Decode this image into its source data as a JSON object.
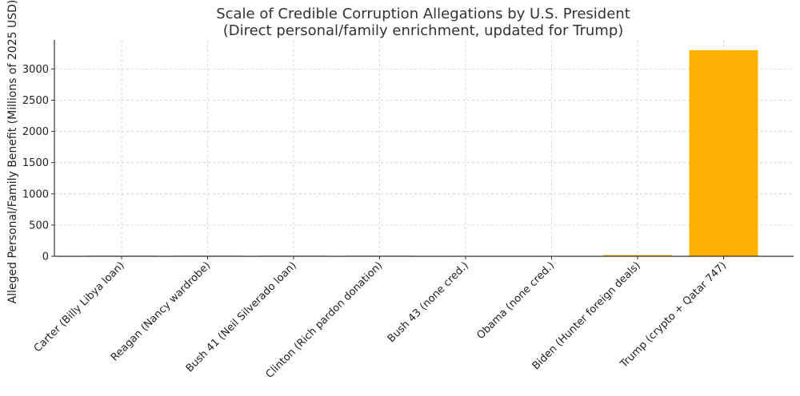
{
  "chart_data": {
    "type": "bar",
    "title_line1": "Scale of Credible Corruption Allegations by U.S. President",
    "title_line2": "(Direct personal/family enrichment, updated for Trump)",
    "xlabel": "",
    "ylabel": "Alleged Personal/Family Benefit (Millions of 2025 USD)",
    "categories": [
      "Carter (Billy Libya loan)",
      "Reagan (Nancy wardrobe)",
      "Bush 41 (Neil Silverado loan)",
      "Clinton (Rich pardon donation)",
      "Bush 43 (none cred.)",
      "Obama (none cred.)",
      "Biden (Hunter foreign deals)",
      "Trump (crypto + Qatar 747)"
    ],
    "values": [
      0.5,
      0.2,
      0.2,
      1,
      0,
      0,
      20,
      3300
    ],
    "colors": [
      "#d9d9d9",
      "#d9d9d9",
      "#d9d9d9",
      "#d9d9d9",
      "#d9d9d9",
      "#d9d9d9",
      "#ffb000",
      "#ffb000"
    ],
    "yticks": [
      0,
      500,
      1000,
      1500,
      2000,
      2500,
      3000
    ],
    "ylim": [
      0,
      3465
    ],
    "grid": true
  }
}
